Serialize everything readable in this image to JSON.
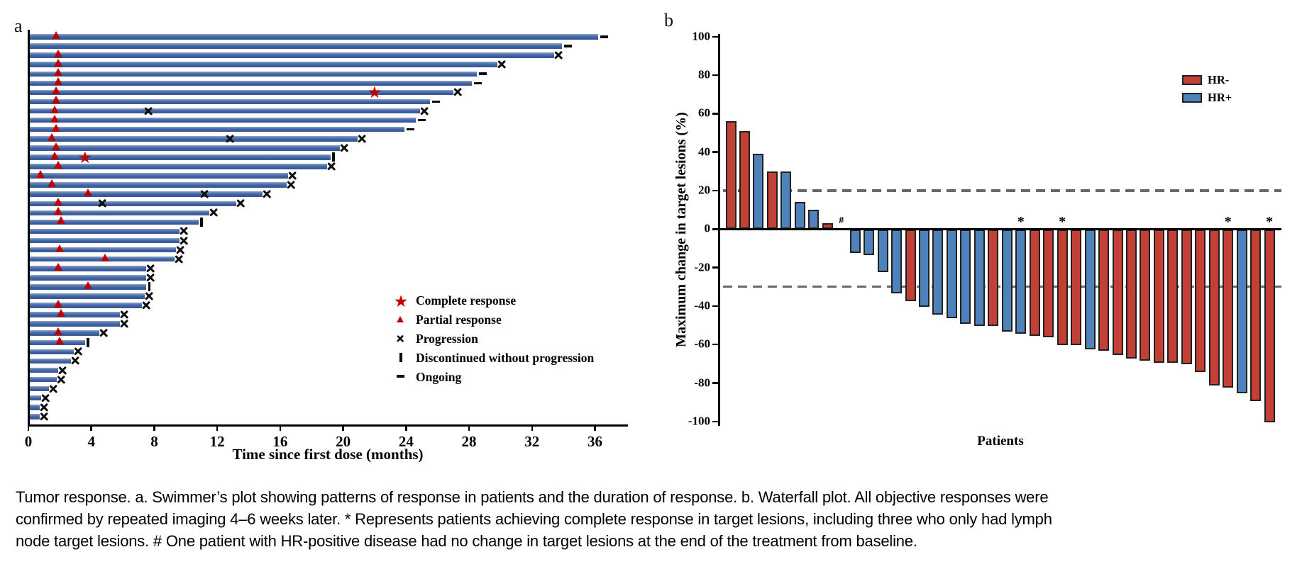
{
  "chart_data": [
    {
      "type": "swimmer",
      "panel_label": "a",
      "xlabel": "Time since first dose (months)",
      "x_ticks": [
        0,
        4,
        8,
        12,
        16,
        20,
        24,
        28,
        32,
        36
      ],
      "xlim": [
        0,
        38
      ],
      "bar_color": "#3d60a0",
      "marker_color": "#c00000",
      "legend": [
        {
          "marker": "star",
          "label": "Complete response"
        },
        {
          "marker": "triangle",
          "label": "Partial response"
        },
        {
          "marker": "x",
          "label": "Progression"
        },
        {
          "marker": "vbar",
          "label": "Discontinued without progression"
        },
        {
          "marker": "dash",
          "label": "Ongoing"
        }
      ],
      "patients": [
        {
          "m": 36.2,
          "end": "ongoing",
          "pr": 1.8
        },
        {
          "m": 33.9,
          "end": "ongoing"
        },
        {
          "m": 33.4,
          "end": "progression",
          "pr": 1.9
        },
        {
          "m": 29.8,
          "end": "progression",
          "pr": 1.9
        },
        {
          "m": 28.5,
          "end": "ongoing",
          "pr": 1.9
        },
        {
          "m": 28.2,
          "end": "ongoing",
          "pr": 1.9
        },
        {
          "m": 27.0,
          "end": "progression",
          "pr": 1.8,
          "cr": 22.0
        },
        {
          "m": 25.5,
          "end": "ongoing",
          "pr": 1.8
        },
        {
          "m": 24.9,
          "end": "progression",
          "pr": 1.7,
          "xm": [
            7.6
          ]
        },
        {
          "m": 24.6,
          "end": "ongoing",
          "pr": 1.7
        },
        {
          "m": 23.9,
          "end": "ongoing",
          "pr": 1.8
        },
        {
          "m": 20.9,
          "end": "progression",
          "pr": 1.5,
          "xm": [
            12.8
          ]
        },
        {
          "m": 19.8,
          "end": "progression",
          "pr": 1.8
        },
        {
          "m": 19.2,
          "end": "discontinued",
          "pr": 1.7,
          "cr": 3.6
        },
        {
          "m": 19.0,
          "end": "progression",
          "pr": 1.9
        },
        {
          "m": 16.5,
          "end": "progression",
          "pr": 0.8
        },
        {
          "m": 16.4,
          "end": "progression",
          "pr": 1.5
        },
        {
          "m": 14.9,
          "end": "progression",
          "pr": 3.8,
          "xm": [
            11.2
          ]
        },
        {
          "m": 13.2,
          "end": "progression",
          "pr": 1.9,
          "xm": [
            4.7
          ]
        },
        {
          "m": 11.5,
          "end": "progression",
          "pr": 1.9
        },
        {
          "m": 10.8,
          "end": "discontinued",
          "pr": 2.1
        },
        {
          "m": 9.6,
          "end": "progression"
        },
        {
          "m": 9.6,
          "end": "progression"
        },
        {
          "m": 9.4,
          "end": "progression",
          "pr": 2.0
        },
        {
          "m": 9.3,
          "end": "progression",
          "pr": 4.9
        },
        {
          "m": 7.5,
          "end": "progression",
          "pr": 1.9
        },
        {
          "m": 7.5,
          "end": "progression"
        },
        {
          "m": 7.5,
          "end": "discontinued",
          "pr": 3.8
        },
        {
          "m": 7.4,
          "end": "progression"
        },
        {
          "m": 7.2,
          "end": "progression",
          "pr": 1.9
        },
        {
          "m": 5.8,
          "end": "progression",
          "pr": 2.1
        },
        {
          "m": 5.8,
          "end": "progression"
        },
        {
          "m": 4.5,
          "end": "progression",
          "pr": 1.9
        },
        {
          "m": 3.6,
          "end": "discontinued",
          "pr": 2.0
        },
        {
          "m": 2.9,
          "end": "progression"
        },
        {
          "m": 2.7,
          "end": "progression"
        },
        {
          "m": 1.9,
          "end": "progression"
        },
        {
          "m": 1.8,
          "end": "progression"
        },
        {
          "m": 1.3,
          "end": "progression"
        },
        {
          "m": 0.8,
          "end": "progression"
        },
        {
          "m": 0.7,
          "end": "progression"
        },
        {
          "m": 0.7,
          "end": "progression"
        }
      ]
    },
    {
      "type": "waterfall-bar",
      "panel_label": "b",
      "ylabel": "Maximum change in target lesions (%)",
      "xlabel": "Patients",
      "ylim": [
        -100,
        100
      ],
      "y_ticks": [
        100,
        80,
        60,
        40,
        20,
        0,
        -20,
        -40,
        -60,
        -80,
        -100
      ],
      "reference_lines": [
        20,
        -30
      ],
      "legend": [
        {
          "label": "HR-",
          "color": "#c24036"
        },
        {
          "label": "HR+",
          "color": "#4d83ba"
        }
      ],
      "annotation_notes": {
        "star": "*",
        "hash": "#"
      },
      "patients": [
        {
          "v": 56,
          "g": "HR-"
        },
        {
          "v": 51,
          "g": "HR-"
        },
        {
          "v": 39,
          "g": "HR+"
        },
        {
          "v": 30,
          "g": "HR-"
        },
        {
          "v": 30,
          "g": "HR+"
        },
        {
          "v": 14,
          "g": "HR+"
        },
        {
          "v": 10,
          "g": "HR+"
        },
        {
          "v": 3,
          "g": "HR-"
        },
        {
          "v": 0,
          "g": "HR+",
          "a": "#"
        },
        {
          "v": -12,
          "g": "HR+"
        },
        {
          "v": -13,
          "g": "HR+"
        },
        {
          "v": -22,
          "g": "HR+"
        },
        {
          "v": -33,
          "g": "HR+"
        },
        {
          "v": -37,
          "g": "HR-"
        },
        {
          "v": -40,
          "g": "HR+"
        },
        {
          "v": -44,
          "g": "HR+"
        },
        {
          "v": -46,
          "g": "HR+"
        },
        {
          "v": -49,
          "g": "HR+"
        },
        {
          "v": -50,
          "g": "HR+"
        },
        {
          "v": -50,
          "g": "HR-"
        },
        {
          "v": -53,
          "g": "HR+"
        },
        {
          "v": -54,
          "g": "HR+",
          "a": "*"
        },
        {
          "v": -55,
          "g": "HR-"
        },
        {
          "v": -56,
          "g": "HR-"
        },
        {
          "v": -60,
          "g": "HR-",
          "a": "*"
        },
        {
          "v": -60,
          "g": "HR-"
        },
        {
          "v": -62,
          "g": "HR+"
        },
        {
          "v": -63,
          "g": "HR-"
        },
        {
          "v": -65,
          "g": "HR-"
        },
        {
          "v": -67,
          "g": "HR-"
        },
        {
          "v": -68,
          "g": "HR-"
        },
        {
          "v": -69,
          "g": "HR-"
        },
        {
          "v": -69,
          "g": "HR-"
        },
        {
          "v": -70,
          "g": "HR-"
        },
        {
          "v": -74,
          "g": "HR-"
        },
        {
          "v": -81,
          "g": "HR-"
        },
        {
          "v": -82,
          "g": "HR-",
          "a": "*"
        },
        {
          "v": -85,
          "g": "HR+"
        },
        {
          "v": -89,
          "g": "HR-"
        },
        {
          "v": -100,
          "g": "HR-",
          "a": "*"
        }
      ]
    }
  ],
  "caption": {
    "lines": [
      "Tumor response. a. Swimmer’s plot showing patterns of response in patients and the duration of response. b. Waterfall plot. All objective responses were",
      "confirmed by repeated imaging 4–6 weeks later. * Represents patients achieving complete response in target lesions, including three who only had lymph",
      "node target lesions. # One patient with HR-positive disease had no change in target lesions at the end of the treatment from baseline."
    ]
  }
}
